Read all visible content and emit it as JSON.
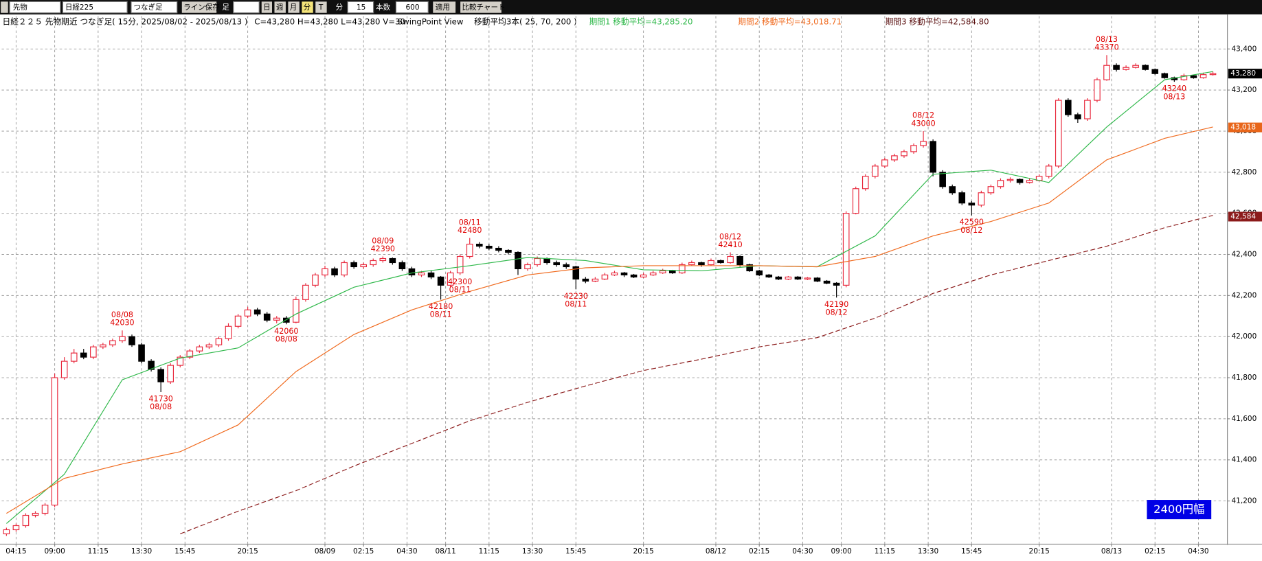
{
  "toolbar": {
    "items": [
      "先物",
      "日経225",
      "つなぎ足",
      "ライン保存",
      "足",
      "日",
      "週",
      "月",
      "分",
      "T",
      "分",
      "15",
      "本数",
      "600",
      "適用",
      "比較チャート"
    ]
  },
  "header": {
    "title": "日経２２５ 先物期近 つなぎ足( 15分, 2025/08/02 - 2025/08/13 )",
    "ohlc": "C=43,280 H=43,280 L=43,280 V=30",
    "view": "SwingPoint View",
    "ma_setting": "移動平均3本( 25, 70, 200 )",
    "ma1": "期間1 移動平均=43,285.20",
    "ma2": "期間2 移動平均=43,018.71",
    "ma3": "期間3 移動平均=42,584.80"
  },
  "badge": "2400円幅",
  "chart_data": {
    "type": "candlestick",
    "up_color": "#e8283c",
    "down_color": "#000000",
    "grid": true,
    "xlim": [
      -1,
      253
    ],
    "ylim": [
      40990,
      43560
    ],
    "xticks": [
      {
        "value": 2,
        "label": "04:15"
      },
      {
        "value": 10,
        "label": "09:00"
      },
      {
        "value": 19,
        "label": "11:15"
      },
      {
        "value": 28,
        "label": "13:30"
      },
      {
        "value": 37,
        "label": "15:45"
      },
      {
        "value": 50,
        "label": "20:15"
      },
      {
        "value": 66,
        "label": "08/09"
      },
      {
        "value": 74,
        "label": "02:15"
      },
      {
        "value": 83,
        "label": "04:30"
      },
      {
        "value": 91,
        "label": "08/11"
      },
      {
        "value": 100,
        "label": "11:15"
      },
      {
        "value": 109,
        "label": "13:30"
      },
      {
        "value": 118,
        "label": "15:45"
      },
      {
        "value": 132,
        "label": "20:15"
      },
      {
        "value": 147,
        "label": "08/12"
      },
      {
        "value": 156,
        "label": "02:15"
      },
      {
        "value": 165,
        "label": "04:30"
      },
      {
        "value": 173,
        "label": "09:00"
      },
      {
        "value": 182,
        "label": "11:15"
      },
      {
        "value": 191,
        "label": "13:30"
      },
      {
        "value": 200,
        "label": "15:45"
      },
      {
        "value": 214,
        "label": "20:15"
      },
      {
        "value": 229,
        "label": "08/13"
      },
      {
        "value": 238,
        "label": "02:15"
      },
      {
        "value": 247,
        "label": "04:30"
      }
    ],
    "yticks": [
      {
        "value": 41200,
        "label": "41,200"
      },
      {
        "value": 41400,
        "label": "41,400"
      },
      {
        "value": 41600,
        "label": "41,600"
      },
      {
        "value": 41800,
        "label": "41,800"
      },
      {
        "value": 42000,
        "label": "42,000"
      },
      {
        "value": 42200,
        "label": "42,200"
      },
      {
        "value": 42400,
        "label": "42,400"
      },
      {
        "value": 42600,
        "label": "42,600"
      },
      {
        "value": 42800,
        "label": "42,800"
      },
      {
        "value": 43000,
        "label": "43,000"
      },
      {
        "value": 43200,
        "label": "43,200"
      },
      {
        "value": 43400,
        "label": "43,400"
      }
    ],
    "x": [
      0,
      2,
      4,
      6,
      8,
      10,
      12,
      14,
      16,
      18,
      20,
      22,
      24,
      26,
      28,
      30,
      32,
      34,
      36,
      38,
      40,
      42,
      44,
      46,
      48,
      50,
      52,
      54,
      56,
      58,
      60,
      62,
      64,
      66,
      68,
      70,
      72,
      74,
      76,
      78,
      80,
      82,
      84,
      86,
      88,
      90,
      92,
      94,
      96,
      98,
      100,
      102,
      104,
      106,
      108,
      110,
      112,
      114,
      116,
      118,
      120,
      122,
      124,
      126,
      128,
      130,
      132,
      134,
      136,
      138,
      140,
      142,
      144,
      146,
      148,
      150,
      152,
      154,
      156,
      158,
      160,
      162,
      164,
      166,
      168,
      170,
      172,
      174,
      176,
      178,
      180,
      182,
      184,
      186,
      188,
      190,
      192,
      194,
      196,
      198,
      200,
      202,
      204,
      206,
      208,
      210,
      212,
      214,
      216,
      218,
      220,
      222,
      224,
      226,
      228,
      230,
      232,
      234,
      236,
      238,
      240,
      242,
      244,
      246,
      248,
      250
    ],
    "candles": [
      [
        41040,
        41070,
        41030,
        41060
      ],
      [
        41060,
        41090,
        41050,
        41080
      ],
      [
        41080,
        41140,
        41070,
        41130
      ],
      [
        41130,
        41150,
        41120,
        41140
      ],
      [
        41140,
        41190,
        41130,
        41180
      ],
      [
        41180,
        41820,
        41170,
        41800
      ],
      [
        41800,
        41900,
        41790,
        41880
      ],
      [
        41880,
        41940,
        41870,
        41920
      ],
      [
        41920,
        41940,
        41890,
        41900
      ],
      [
        41900,
        41960,
        41890,
        41950
      ],
      [
        41950,
        41970,
        41940,
        41960
      ],
      [
        41960,
        41990,
        41950,
        41980
      ],
      [
        41980,
        42030,
        41970,
        42000
      ],
      [
        42000,
        42010,
        41950,
        41960
      ],
      [
        41960,
        41970,
        41870,
        41880
      ],
      [
        41880,
        41890,
        41830,
        41840
      ],
      [
        41840,
        41850,
        41730,
        41780
      ],
      [
        41780,
        41870,
        41770,
        41860
      ],
      [
        41860,
        41910,
        41850,
        41900
      ],
      [
        41900,
        41940,
        41890,
        41930
      ],
      [
        41930,
        41960,
        41920,
        41950
      ],
      [
        41950,
        41970,
        41940,
        41960
      ],
      [
        41960,
        42000,
        41950,
        41990
      ],
      [
        41990,
        42065,
        41980,
        42050
      ],
      [
        42050,
        42110,
        42040,
        42100
      ],
      [
        42100,
        42145,
        42090,
        42130
      ],
      [
        42130,
        42140,
        42100,
        42110
      ],
      [
        42110,
        42120,
        42070,
        42080
      ],
      [
        42080,
        42100,
        42065,
        42090
      ],
      [
        42090,
        42100,
        42060,
        42070
      ],
      [
        42070,
        42195,
        42065,
        42180
      ],
      [
        42180,
        42260,
        42170,
        42250
      ],
      [
        42250,
        42310,
        42240,
        42300
      ],
      [
        42300,
        42345,
        42290,
        42330
      ],
      [
        42330,
        42340,
        42290,
        42300
      ],
      [
        42300,
        42370,
        42290,
        42360
      ],
      [
        42360,
        42370,
        42330,
        42340
      ],
      [
        42340,
        42360,
        42330,
        42350
      ],
      [
        42350,
        42380,
        42340,
        42370
      ],
      [
        42370,
        42390,
        42360,
        42380
      ],
      [
        42380,
        42385,
        42350,
        42360
      ],
      [
        42360,
        42370,
        42320,
        42330
      ],
      [
        42330,
        42340,
        42290,
        42300
      ],
      [
        42300,
        42320,
        42290,
        42310
      ],
      [
        42310,
        42320,
        42280,
        42290
      ],
      [
        42290,
        42295,
        42180,
        42250
      ],
      [
        42250,
        42320,
        42240,
        42310
      ],
      [
        42310,
        42400,
        42300,
        42390
      ],
      [
        42390,
        42480,
        42380,
        42450
      ],
      [
        42450,
        42460,
        42430,
        42440
      ],
      [
        42440,
        42450,
        42420,
        42430
      ],
      [
        42430,
        42440,
        42410,
        42420
      ],
      [
        42420,
        42425,
        42400,
        42410
      ],
      [
        42410,
        42415,
        42300,
        42330
      ],
      [
        42330,
        42360,
        42320,
        42350
      ],
      [
        42350,
        42390,
        42340,
        42380
      ],
      [
        42380,
        42385,
        42350,
        42360
      ],
      [
        42360,
        42370,
        42340,
        42350
      ],
      [
        42350,
        42360,
        42330,
        42340
      ],
      [
        42340,
        42345,
        42230,
        42280
      ],
      [
        42280,
        42290,
        42260,
        42270
      ],
      [
        42270,
        42290,
        42265,
        42280
      ],
      [
        42280,
        42310,
        42275,
        42300
      ],
      [
        42300,
        42320,
        42295,
        42310
      ],
      [
        42310,
        42315,
        42290,
        42300
      ],
      [
        42300,
        42305,
        42285,
        42290
      ],
      [
        42290,
        42310,
        42285,
        42300
      ],
      [
        42300,
        42320,
        42295,
        42310
      ],
      [
        42310,
        42330,
        42305,
        42320
      ],
      [
        42320,
        42325,
        42305,
        42310
      ],
      [
        42310,
        42360,
        42305,
        42350
      ],
      [
        42350,
        42370,
        42345,
        42360
      ],
      [
        42360,
        42365,
        42340,
        42350
      ],
      [
        42350,
        42380,
        42345,
        42370
      ],
      [
        42370,
        42375,
        42355,
        42360
      ],
      [
        42360,
        42410,
        42355,
        42390
      ],
      [
        42390,
        42395,
        42340,
        42350
      ],
      [
        42350,
        42355,
        42315,
        42320
      ],
      [
        42320,
        42325,
        42295,
        42300
      ],
      [
        42300,
        42305,
        42285,
        42290
      ],
      [
        42290,
        42295,
        42275,
        42280
      ],
      [
        42280,
        42295,
        42275,
        42290
      ],
      [
        42290,
        42295,
        42275,
        42280
      ],
      [
        42280,
        42290,
        42275,
        42285
      ],
      [
        42285,
        42290,
        42265,
        42270
      ],
      [
        42270,
        42275,
        42255,
        42260
      ],
      [
        42260,
        42265,
        42190,
        42250
      ],
      [
        42250,
        42610,
        42240,
        42600
      ],
      [
        42600,
        42730,
        42595,
        42720
      ],
      [
        42720,
        42790,
        42710,
        42780
      ],
      [
        42780,
        42840,
        42770,
        42830
      ],
      [
        42830,
        42870,
        42820,
        42860
      ],
      [
        42860,
        42890,
        42850,
        42880
      ],
      [
        42880,
        42910,
        42870,
        42900
      ],
      [
        42900,
        42940,
        42890,
        42930
      ],
      [
        42930,
        43000,
        42920,
        42950
      ],
      [
        42950,
        42960,
        42780,
        42800
      ],
      [
        42800,
        42810,
        42720,
        42730
      ],
      [
        42730,
        42740,
        42690,
        42700
      ],
      [
        42700,
        42710,
        42640,
        42650
      ],
      [
        42650,
        42660,
        42590,
        42640
      ],
      [
        42640,
        42710,
        42630,
        42700
      ],
      [
        42700,
        42740,
        42690,
        42730
      ],
      [
        42730,
        42770,
        42720,
        42760
      ],
      [
        42760,
        42775,
        42750,
        42765
      ],
      [
        42765,
        42770,
        42740,
        42750
      ],
      [
        42750,
        42770,
        42745,
        42760
      ],
      [
        42760,
        42790,
        42755,
        42780
      ],
      [
        42780,
        42840,
        42770,
        42830
      ],
      [
        42830,
        43160,
        42820,
        43150
      ],
      [
        43150,
        43160,
        43070,
        43080
      ],
      [
        43080,
        43090,
        43040,
        43060
      ],
      [
        43060,
        43160,
        43050,
        43150
      ],
      [
        43150,
        43260,
        43140,
        43250
      ],
      [
        43250,
        43370,
        43245,
        43320
      ],
      [
        43320,
        43330,
        43290,
        43300
      ],
      [
        43300,
        43320,
        43295,
        43310
      ],
      [
        43310,
        43330,
        43305,
        43320
      ],
      [
        43320,
        43325,
        43295,
        43300
      ],
      [
        43300,
        43305,
        43275,
        43280
      ],
      [
        43280,
        43285,
        43255,
        43260
      ],
      [
        43260,
        43265,
        43240,
        43250
      ],
      [
        43250,
        43280,
        43245,
        43270
      ],
      [
        43270,
        43275,
        43255,
        43260
      ],
      [
        43260,
        43285,
        43255,
        43275
      ],
      [
        43275,
        43290,
        43270,
        43280
      ]
    ],
    "series": [
      {
        "color": "#2fb84a",
        "dash": false,
        "x": [
          0,
          12,
          24,
          36,
          48,
          60,
          72,
          84,
          96,
          108,
          120,
          132,
          144,
          156,
          168,
          180,
          192,
          204,
          216,
          228,
          240,
          250
        ],
        "values": [
          41090,
          41330,
          41790,
          41895,
          41945,
          42110,
          42240,
          42310,
          42345,
          42385,
          42370,
          42325,
          42320,
          42345,
          42340,
          42490,
          42790,
          42810,
          42750,
          43020,
          43250,
          43290
        ]
      },
      {
        "color": "#f06a1e",
        "dash": false,
        "x": [
          0,
          12,
          24,
          36,
          48,
          60,
          72,
          84,
          96,
          108,
          120,
          132,
          144,
          156,
          168,
          180,
          192,
          204,
          216,
          228,
          240,
          250
        ],
        "values": [
          41140,
          41310,
          41380,
          41440,
          41570,
          41830,
          42010,
          42130,
          42220,
          42300,
          42335,
          42345,
          42345,
          42345,
          42340,
          42390,
          42490,
          42560,
          42650,
          42860,
          42965,
          43020
        ]
      },
      {
        "color": "#8b1a1a",
        "dash": true,
        "x": [
          0,
          12,
          24,
          36,
          48,
          60,
          72,
          84,
          96,
          108,
          120,
          132,
          144,
          156,
          168,
          180,
          192,
          204,
          216,
          228,
          240,
          250
        ],
        "values": [
          null,
          null,
          null,
          41040,
          41150,
          41250,
          41370,
          41480,
          41590,
          41680,
          41760,
          41835,
          41890,
          41950,
          41995,
          42090,
          42210,
          42300,
          42370,
          42440,
          42530,
          42590
        ]
      }
    ],
    "annotations": [
      {
        "date": "08/08",
        "price": 42030
      },
      {
        "date": "08/08",
        "price": 41730
      },
      {
        "date": "08/08",
        "price": 42060
      },
      {
        "date": "08/09",
        "price": 42390
      },
      {
        "date": "08/11",
        "price": 42180
      },
      {
        "date": "08/11",
        "price": 42480
      },
      {
        "date": "08/11",
        "price": 42300
      },
      {
        "date": "08/11",
        "price": 42230
      },
      {
        "date": "08/12",
        "price": 42410
      },
      {
        "date": "08/12",
        "price": 42190
      },
      {
        "date": "08/12",
        "price": 43000
      },
      {
        "date": "08/12",
        "price": 42590
      },
      {
        "date": "08/13",
        "price": 43370
      },
      {
        "date": "08/13",
        "price": 43240
      }
    ],
    "annotation_color": "#e00000",
    "price_tags": [
      {
        "value": 43280,
        "label": "43,280",
        "color": "#000000"
      },
      {
        "value": 43018,
        "label": "43,018",
        "color": "#e8661a"
      },
      {
        "value": 42584,
        "label": "42,584",
        "color": "#8b1a1a"
      }
    ]
  }
}
